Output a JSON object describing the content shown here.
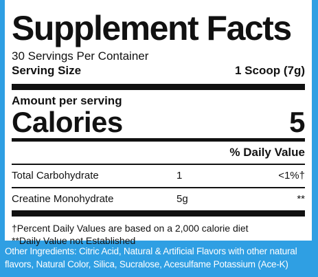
{
  "panel": {
    "title": "Supplement Facts",
    "servings_per_container": "30 Servings Per Container",
    "serving_size_label": "Serving Size",
    "serving_size_value": "1 Scoop (7g)",
    "amount_per_serving": "Amount per serving",
    "calories_label": "Calories",
    "calories_value": "5",
    "daily_value_header": "% Daily Value",
    "nutrients": [
      {
        "name": "Total Carbohydrate",
        "amount": "1",
        "dv": "<1%†"
      },
      {
        "name": "Creatine Monohydrate",
        "amount": "5g",
        "dv": "**"
      }
    ],
    "footnote_1": "†Percent Daily Values are based on a 2,000 calorie diet",
    "footnote_2": "**Daily Value not Established"
  },
  "ingredients": "Other Ingredients: Citric Acid, Natural & Artificial Flavors with other natural flavors, Natural Color, Silica, Sucralose, Acesulfame Potassium (Ace-K)",
  "colors": {
    "background": "#2f9fe3",
    "panel": "#ffffff",
    "text": "#111111"
  }
}
